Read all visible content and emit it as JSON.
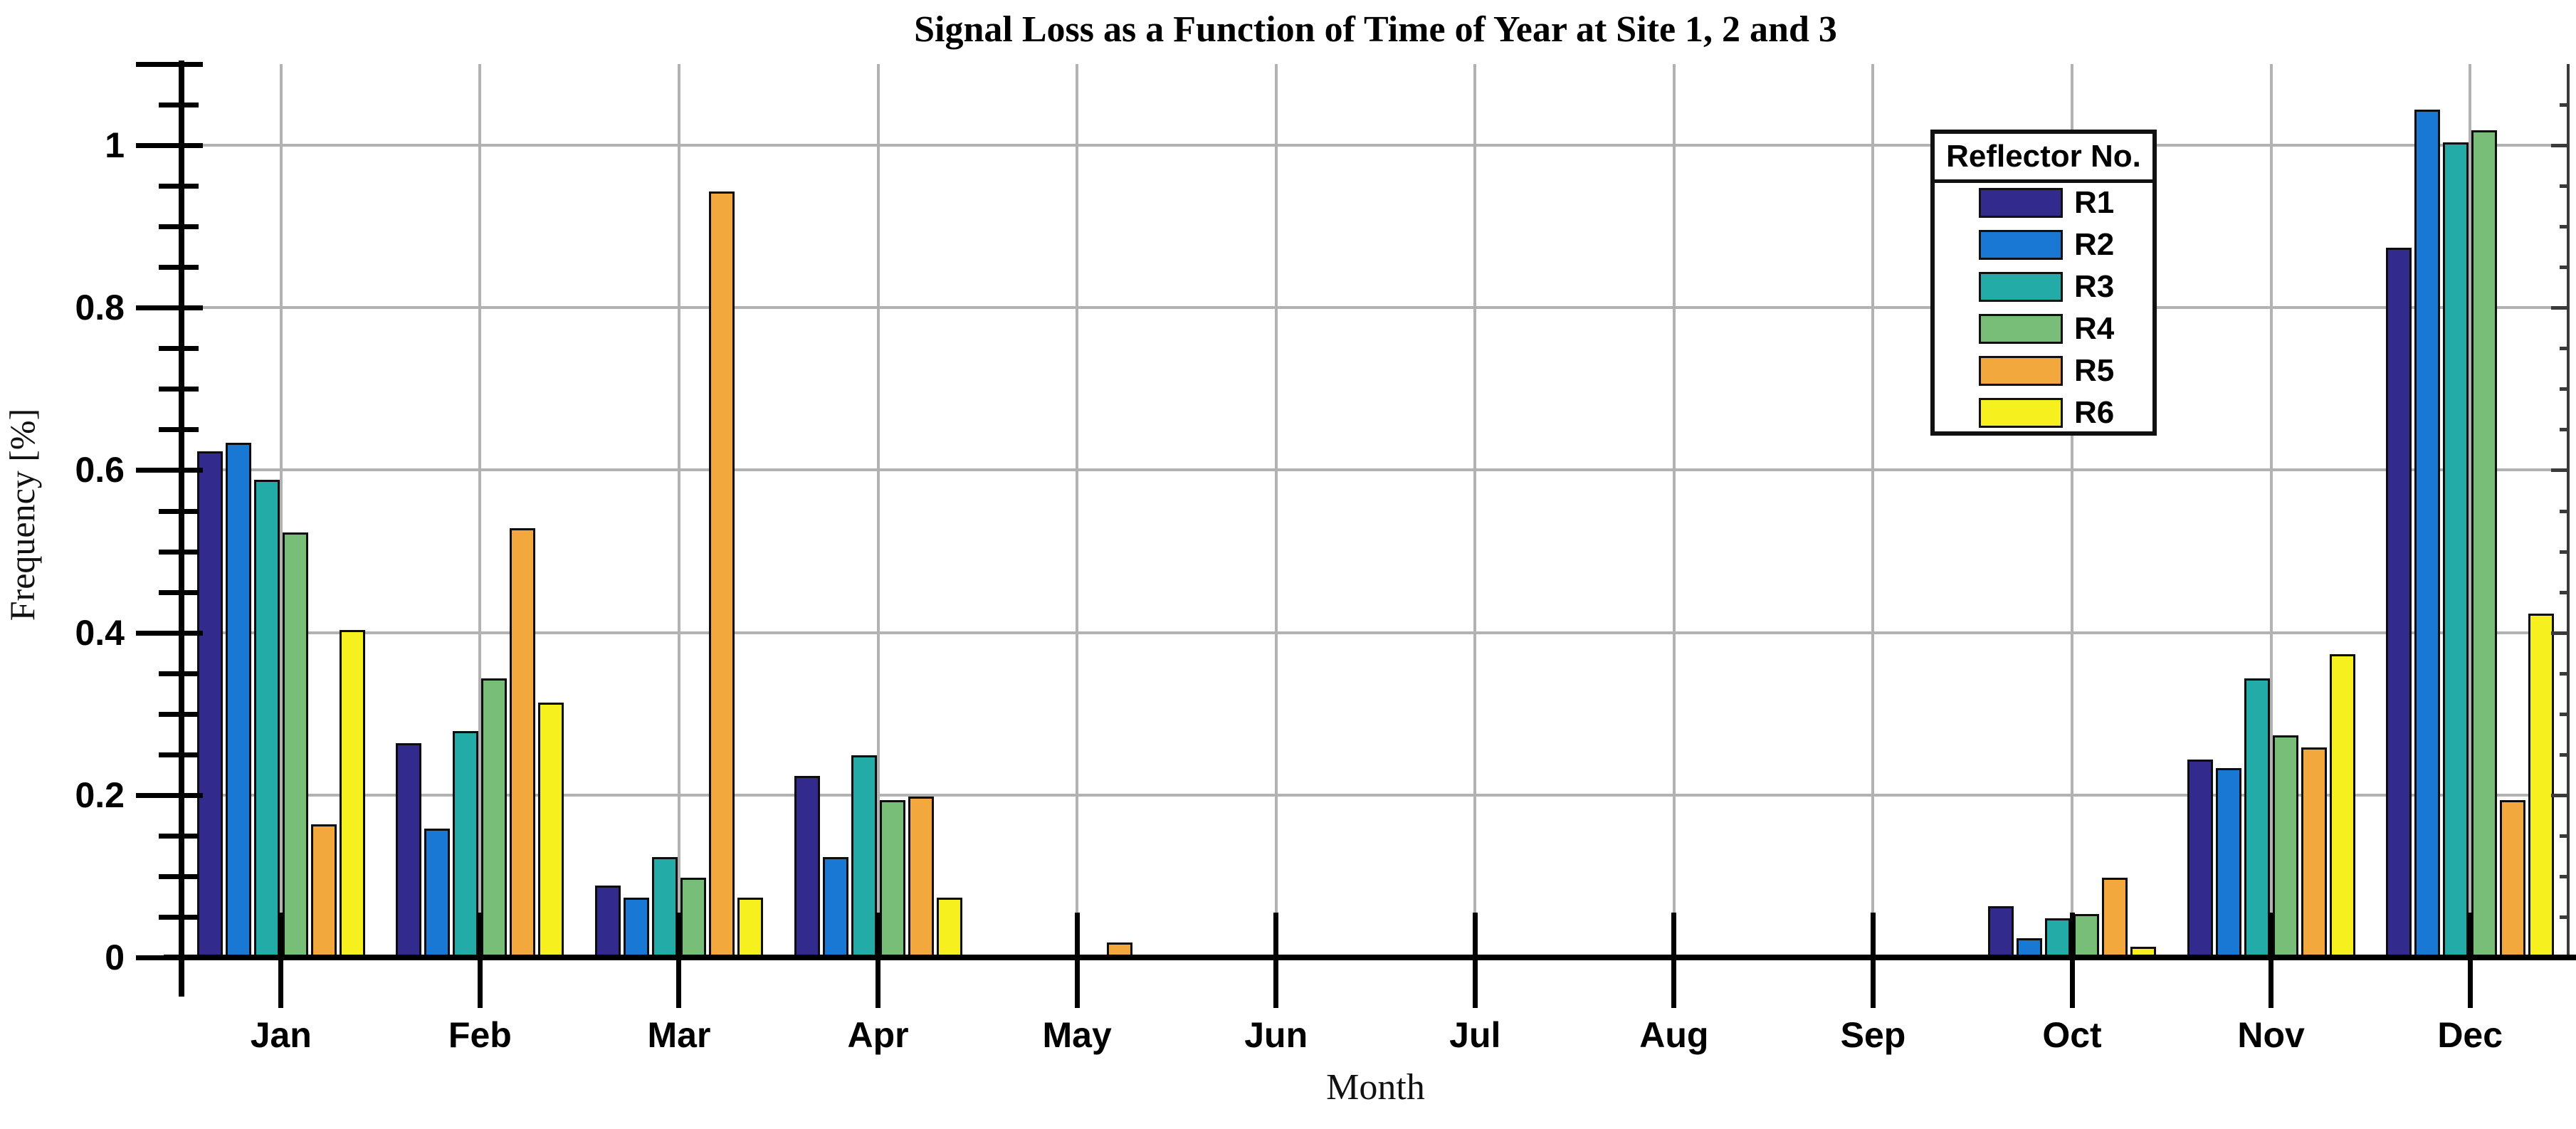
{
  "title": "Signal Loss as a Function of Time of Year at Site 1, 2 and 3",
  "axes": {
    "x_label": "Month",
    "y_label": "Frequency [%]",
    "y_tick_labels": [
      "0",
      "0.2",
      "0.4",
      "0.6",
      "0.8",
      "1"
    ]
  },
  "legend": {
    "title": "Reflector No.",
    "entries": [
      {
        "label": "R1",
        "color": "#322b8d"
      },
      {
        "label": "R2",
        "color": "#1878d3"
      },
      {
        "label": "R3",
        "color": "#23aba8"
      },
      {
        "label": "R4",
        "color": "#79be78"
      },
      {
        "label": "R5",
        "color": "#f2a83d"
      },
      {
        "label": "R6",
        "color": "#f6f11e"
      }
    ]
  },
  "chart_data": {
    "type": "bar",
    "title": "Signal Loss as a Function of Time of Year at Site 1, 2 and 3",
    "xlabel": "Month",
    "ylabel": "Frequency [%]",
    "categories": [
      "Jan",
      "Feb",
      "Mar",
      "Apr",
      "May",
      "Jun",
      "Jul",
      "Aug",
      "Sep",
      "Oct",
      "Nov",
      "Dec"
    ],
    "series": [
      {
        "name": "R1",
        "color": "#322b8d",
        "values": [
          0.62,
          0.26,
          0.085,
          0.22,
          0,
          0,
          0,
          0,
          0,
          0.06,
          0.24,
          0.87
        ]
      },
      {
        "name": "R2",
        "color": "#1878d3",
        "values": [
          0.63,
          0.155,
          0.07,
          0.12,
          0,
          0,
          0,
          0,
          0,
          0.02,
          0.23,
          1.04
        ]
      },
      {
        "name": "R3",
        "color": "#23aba8",
        "values": [
          0.585,
          0.275,
          0.12,
          0.245,
          0,
          0,
          0,
          0,
          0,
          0.045,
          0.34,
          1.0
        ]
      },
      {
        "name": "R4",
        "color": "#79be78",
        "values": [
          0.52,
          0.34,
          0.095,
          0.19,
          0,
          0,
          0,
          0,
          0,
          0.05,
          0.27,
          1.015
        ]
      },
      {
        "name": "R5",
        "color": "#f2a83d",
        "values": [
          0.16,
          0.525,
          0.94,
          0.195,
          0.015,
          0,
          0,
          0,
          0,
          0.095,
          0.255,
          0.19
        ]
      },
      {
        "name": "R6",
        "color": "#f6f11e",
        "values": [
          0.4,
          0.31,
          0.07,
          0.07,
          0,
          0,
          0,
          0,
          0,
          0.01,
          0.37,
          0.42
        ]
      }
    ],
    "ylim": [
      0,
      1.1
    ],
    "ytick_values": [
      0,
      0.2,
      0.4,
      0.6,
      0.8,
      1.0
    ],
    "minor_tick_step": 0.05,
    "grid": true,
    "legend_title": "Reflector No.",
    "legend_position": "top-right"
  }
}
